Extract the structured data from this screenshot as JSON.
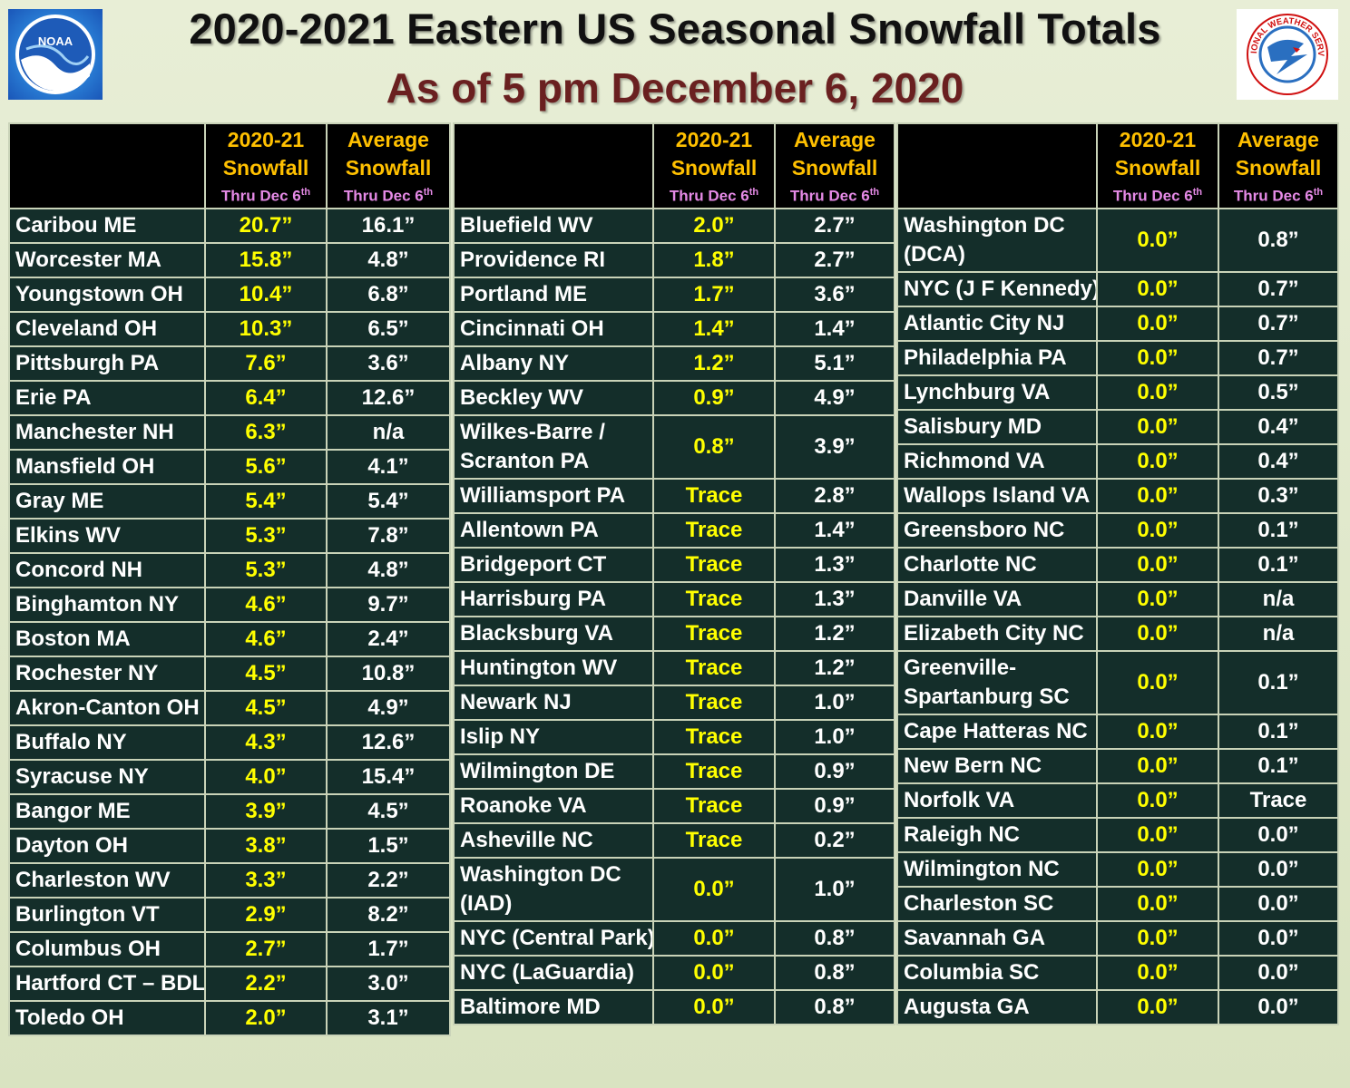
{
  "title": "2020-2021 Eastern US Seasonal Snowfall Totals",
  "subtitle": "As of 5 pm December 6, 2020",
  "logos": {
    "left": {
      "text": "NOAA",
      "colors": [
        "#2a7fd6",
        "#ffffff"
      ]
    },
    "right": {
      "text": "NATIONAL WEATHER SERVICE",
      "colors": [
        "#d01010",
        "#2a6fc0"
      ]
    }
  },
  "header": {
    "current_line1": "2020-21",
    "current_line2": "Snowfall",
    "average_line1": "Average",
    "average_line2": "Snowfall",
    "thru": "Thru Dec 6",
    "thru_sup": "th"
  },
  "tables": [
    {
      "rows": [
        {
          "location": "Caribou ME",
          "snowfall": "20.7”",
          "average": "16.1”"
        },
        {
          "location": "Worcester MA",
          "snowfall": "15.8”",
          "average": "4.8”"
        },
        {
          "location": "Youngstown OH",
          "snowfall": "10.4”",
          "average": "6.8”"
        },
        {
          "location": "Cleveland OH",
          "snowfall": "10.3”",
          "average": "6.5”"
        },
        {
          "location": "Pittsburgh PA",
          "snowfall": "7.6”",
          "average": "3.6”"
        },
        {
          "location": "Erie PA",
          "snowfall": "6.4”",
          "average": "12.6”"
        },
        {
          "location": "Manchester NH",
          "snowfall": "6.3”",
          "average": "n/a"
        },
        {
          "location": "Mansfield OH",
          "snowfall": "5.6”",
          "average": "4.1”"
        },
        {
          "location": "Gray ME",
          "snowfall": "5.4”",
          "average": "5.4”"
        },
        {
          "location": "Elkins WV",
          "snowfall": "5.3”",
          "average": "7.8”"
        },
        {
          "location": "Concord NH",
          "snowfall": "5.3”",
          "average": "4.8”"
        },
        {
          "location": "Binghamton NY",
          "snowfall": "4.6”",
          "average": "9.7”"
        },
        {
          "location": "Boston MA",
          "snowfall": "4.6”",
          "average": "2.4”"
        },
        {
          "location": "Rochester NY",
          "snowfall": "4.5”",
          "average": "10.8”"
        },
        {
          "location": "Akron-Canton OH",
          "snowfall": "4.5”",
          "average": "4.9”"
        },
        {
          "location": "Buffalo NY",
          "snowfall": "4.3”",
          "average": "12.6”"
        },
        {
          "location": "Syracuse NY",
          "snowfall": "4.0”",
          "average": "15.4”"
        },
        {
          "location": "Bangor ME",
          "snowfall": "3.9”",
          "average": "4.5”"
        },
        {
          "location": "Dayton OH",
          "snowfall": "3.8”",
          "average": "1.5”"
        },
        {
          "location": "Charleston WV",
          "snowfall": "3.3”",
          "average": "2.2”"
        },
        {
          "location": "Burlington VT",
          "snowfall": "2.9”",
          "average": "8.2”"
        },
        {
          "location": "Columbus OH",
          "snowfall": "2.7”",
          "average": "1.7”"
        },
        {
          "location": "Hartford CT – BDL",
          "snowfall": "2.2”",
          "average": "3.0”"
        },
        {
          "location": "Toledo OH",
          "snowfall": "2.0”",
          "average": "3.1”"
        }
      ]
    },
    {
      "rows": [
        {
          "location": "Bluefield WV",
          "snowfall": "2.0”",
          "average": "2.7”"
        },
        {
          "location": "Providence RI",
          "snowfall": "1.8”",
          "average": "2.7”"
        },
        {
          "location": "Portland ME",
          "snowfall": "1.7”",
          "average": "3.6”"
        },
        {
          "location": "Cincinnati OH",
          "snowfall": "1.4”",
          "average": "1.4”"
        },
        {
          "location": "Albany NY",
          "snowfall": "1.2”",
          "average": "5.1”"
        },
        {
          "location": "Beckley WV",
          "snowfall": "0.9”",
          "average": "4.9”"
        },
        {
          "location": "Wilkes-Barre / Scranton PA",
          "snowfall": "0.8”",
          "average": "3.9”",
          "tall": true
        },
        {
          "location": "Williamsport PA",
          "snowfall": "Trace",
          "average": "2.8”"
        },
        {
          "location": "Allentown PA",
          "snowfall": "Trace",
          "average": "1.4”"
        },
        {
          "location": "Bridgeport CT",
          "snowfall": "Trace",
          "average": "1.3”"
        },
        {
          "location": "Harrisburg PA",
          "snowfall": "Trace",
          "average": "1.3”"
        },
        {
          "location": "Blacksburg VA",
          "snowfall": "Trace",
          "average": "1.2”"
        },
        {
          "location": "Huntington WV",
          "snowfall": "Trace",
          "average": "1.2”"
        },
        {
          "location": "Newark NJ",
          "snowfall": "Trace",
          "average": "1.0”"
        },
        {
          "location": "Islip NY",
          "snowfall": "Trace",
          "average": "1.0”"
        },
        {
          "location": "Wilmington DE",
          "snowfall": "Trace",
          "average": "0.9”"
        },
        {
          "location": "Roanoke VA",
          "snowfall": "Trace",
          "average": "0.9”"
        },
        {
          "location": "Asheville NC",
          "snowfall": "Trace",
          "average": "0.2”"
        },
        {
          "location": "Washington DC (IAD)",
          "snowfall": "0.0”",
          "average": "1.0”",
          "tall": true
        },
        {
          "location": "NYC (Central Park)",
          "snowfall": "0.0”",
          "average": "0.8”"
        },
        {
          "location": "NYC (LaGuardia)",
          "snowfall": "0.0”",
          "average": "0.8”"
        },
        {
          "location": "Baltimore MD",
          "snowfall": "0.0”",
          "average": "0.8”"
        }
      ]
    },
    {
      "rows": [
        {
          "location": "Washington DC (DCA)",
          "snowfall": "0.0”",
          "average": "0.8”",
          "tall": true
        },
        {
          "location": "NYC (J F Kennedy)",
          "snowfall": "0.0”",
          "average": "0.7”"
        },
        {
          "location": "Atlantic City NJ",
          "snowfall": "0.0”",
          "average": "0.7”"
        },
        {
          "location": "Philadelphia PA",
          "snowfall": "0.0”",
          "average": "0.7”"
        },
        {
          "location": "Lynchburg VA",
          "snowfall": "0.0”",
          "average": "0.5”"
        },
        {
          "location": "Salisbury MD",
          "snowfall": "0.0”",
          "average": "0.4”"
        },
        {
          "location": "Richmond VA",
          "snowfall": "0.0”",
          "average": "0.4”"
        },
        {
          "location": "Wallops Island VA",
          "snowfall": "0.0”",
          "average": "0.3”"
        },
        {
          "location": "Greensboro NC",
          "snowfall": "0.0”",
          "average": "0.1”"
        },
        {
          "location": "Charlotte NC",
          "snowfall": "0.0”",
          "average": "0.1”"
        },
        {
          "location": "Danville VA",
          "snowfall": "0.0”",
          "average": "n/a"
        },
        {
          "location": "Elizabeth City NC",
          "snowfall": "0.0”",
          "average": "n/a"
        },
        {
          "location": "Greenville-Spartanburg SC",
          "snowfall": "0.0”",
          "average": "0.1”",
          "tall": true
        },
        {
          "location": "Cape Hatteras NC",
          "snowfall": "0.0”",
          "average": "0.1”"
        },
        {
          "location": "New Bern NC",
          "snowfall": "0.0”",
          "average": "0.1”"
        },
        {
          "location": "Norfolk VA",
          "snowfall": "0.0”",
          "average": "Trace"
        },
        {
          "location": "Raleigh NC",
          "snowfall": "0.0”",
          "average": "0.0”"
        },
        {
          "location": "Wilmington NC",
          "snowfall": "0.0”",
          "average": "0.0”"
        },
        {
          "location": "Charleston SC",
          "snowfall": "0.0”",
          "average": "0.0”"
        },
        {
          "location": "Savannah GA",
          "snowfall": "0.0”",
          "average": "0.0”"
        },
        {
          "location": "Columbia SC",
          "snowfall": "0.0”",
          "average": "0.0”"
        },
        {
          "location": "Augusta GA",
          "snowfall": "0.0”",
          "average": "0.0”"
        }
      ]
    }
  ]
}
